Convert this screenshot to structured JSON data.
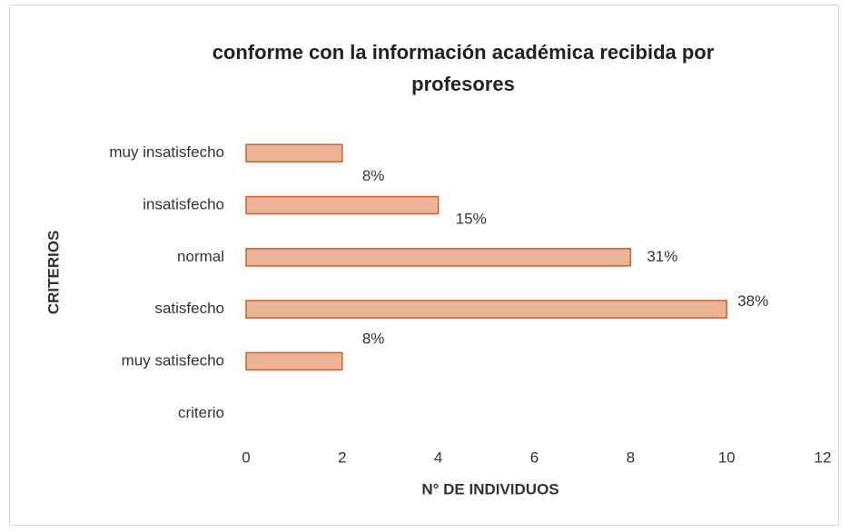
{
  "chart_data": {
    "type": "bar",
    "orientation": "horizontal",
    "title": "conforme  con la información académica recibida por profesores",
    "xlabel": "N° DE INDIVIDUOS",
    "ylabel": "CRITERIOS",
    "categories": [
      "muy insatisfecho",
      "insatisfecho",
      "normal",
      "satisfecho",
      "muy satisfecho",
      "criterio"
    ],
    "values": [
      2,
      4,
      8,
      10,
      2,
      null
    ],
    "annotations": [
      "8%",
      "15%",
      "31%",
      "38%",
      "8%",
      null
    ],
    "color": "#efb398",
    "edge_color": "#c8622a",
    "xlim": [
      0,
      12
    ],
    "xticks": [
      0,
      2,
      4,
      6,
      8,
      10,
      12
    ],
    "grid": false
  }
}
